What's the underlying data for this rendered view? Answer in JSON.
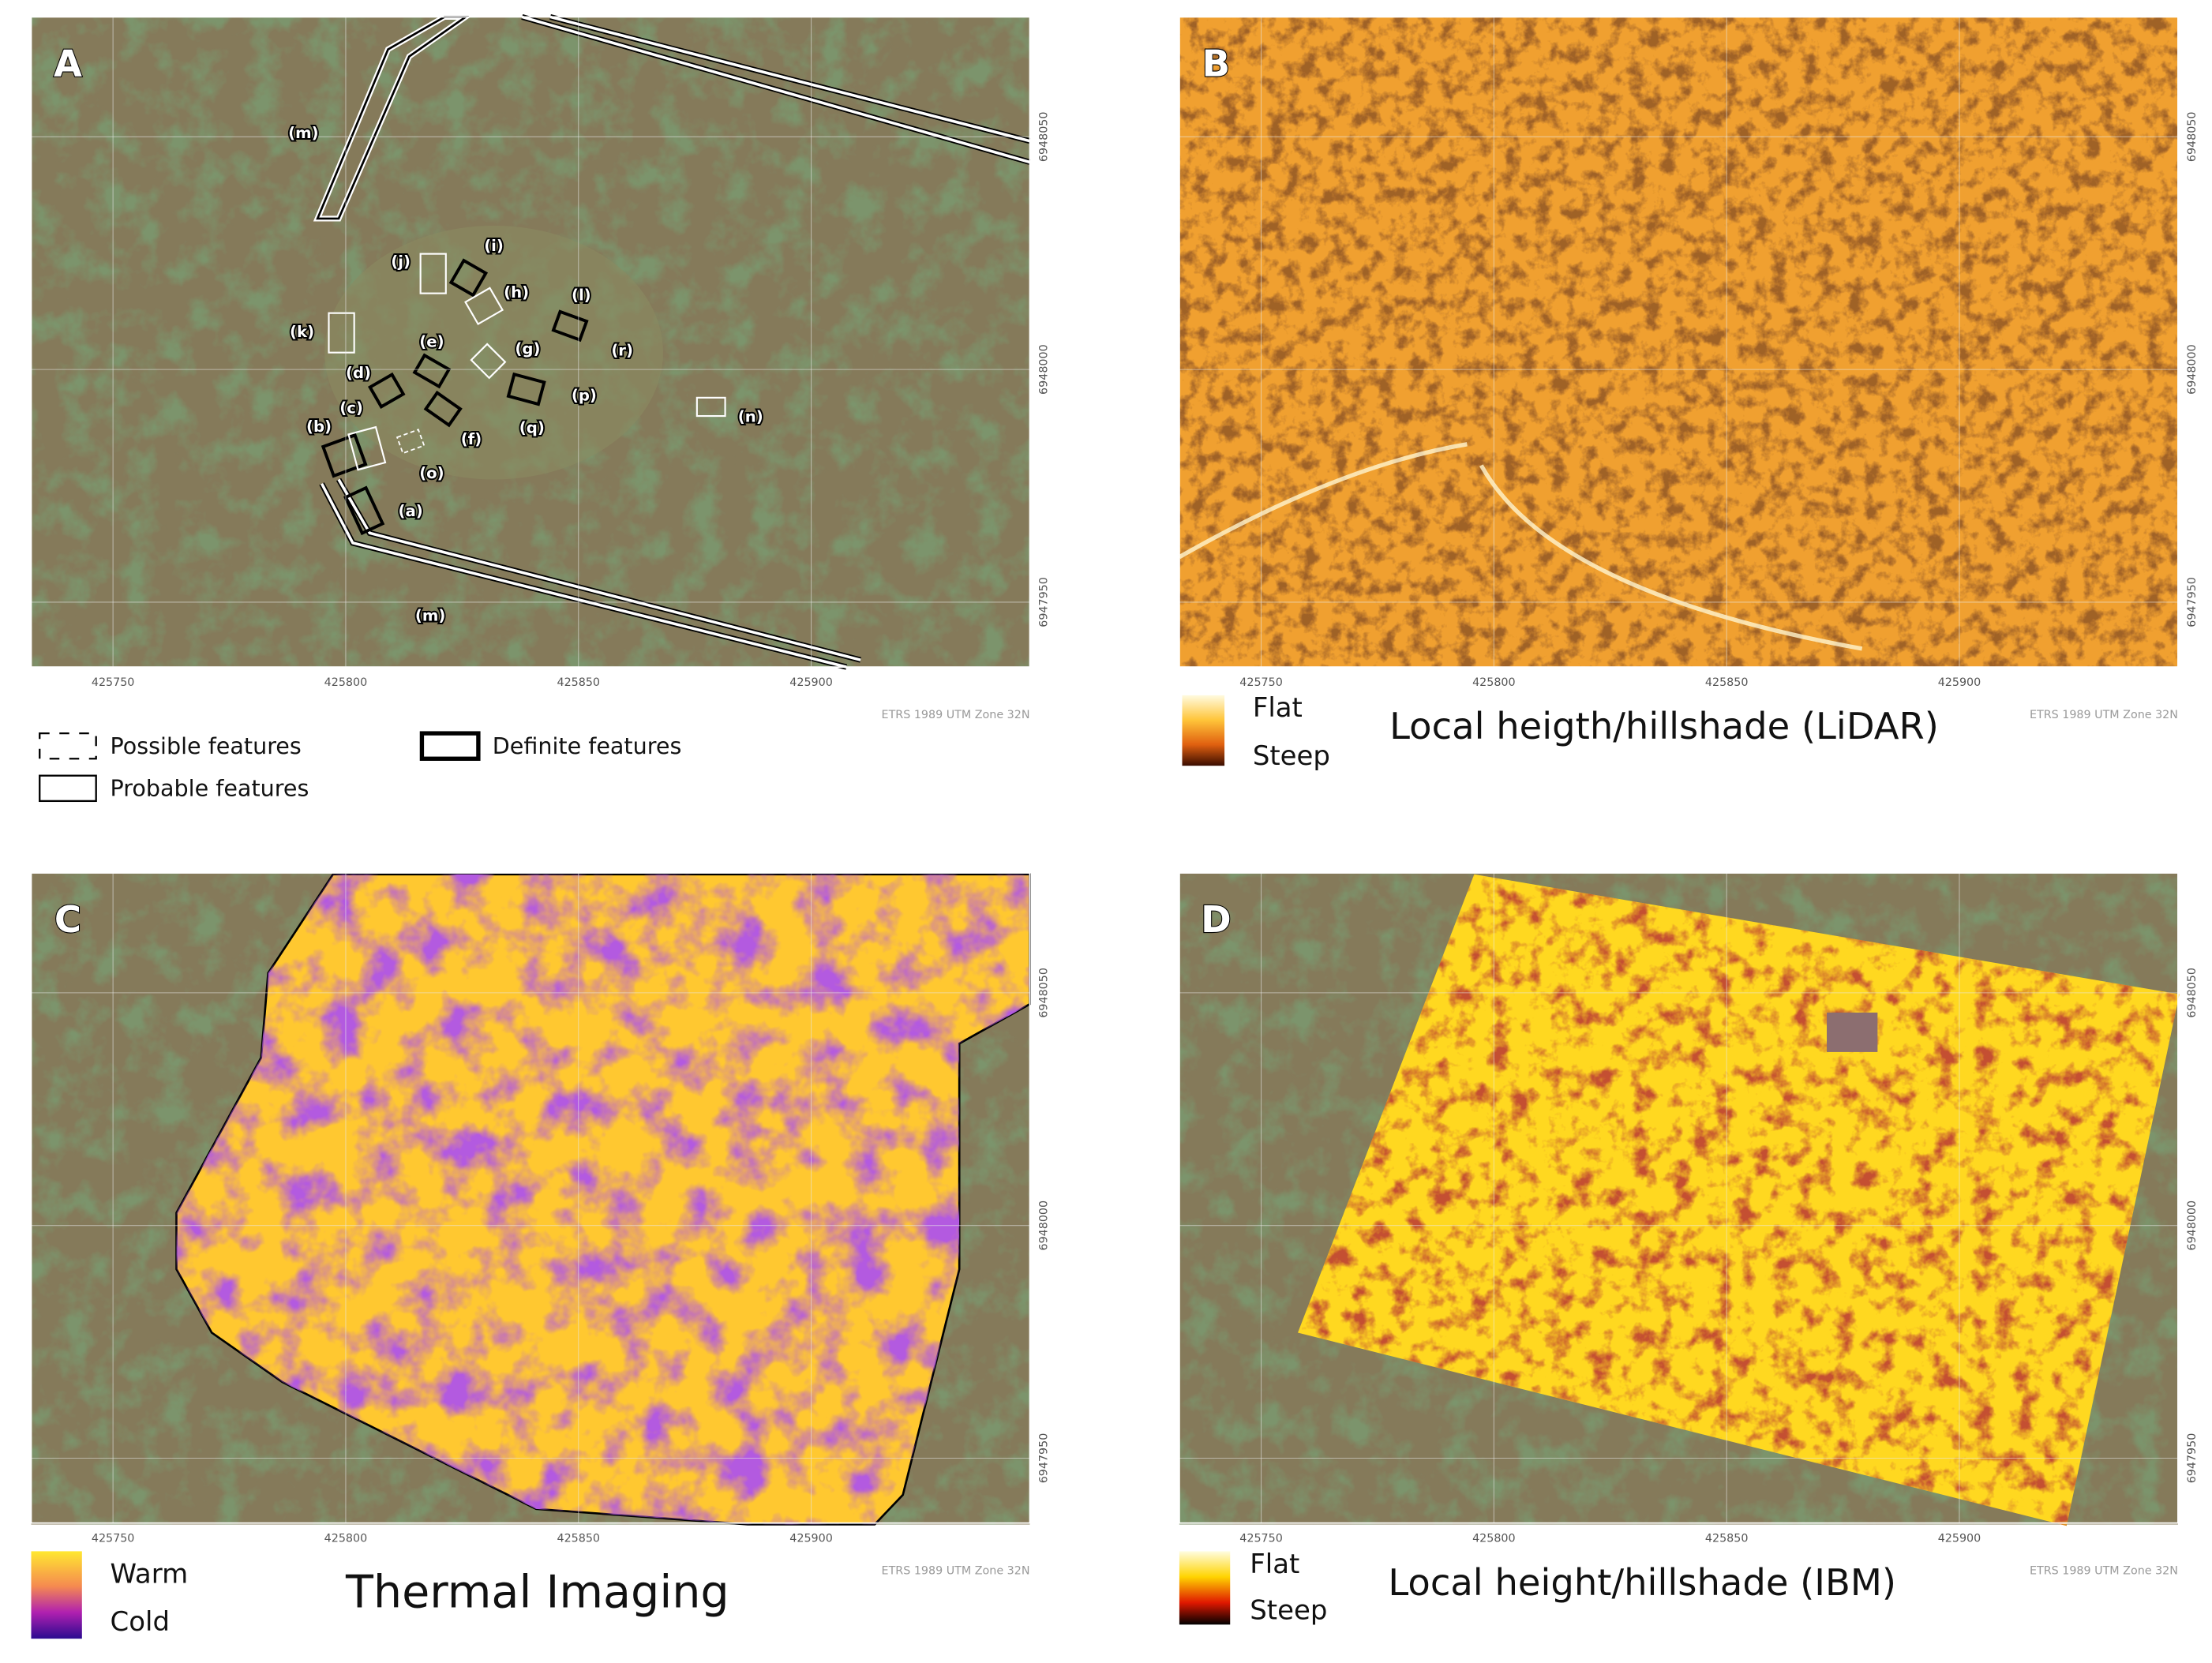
{
  "panels": [
    {
      "letter": "A",
      "x_ticks": [
        "425750",
        "425800",
        "425850",
        "425900"
      ],
      "y_ticks": [
        "6948050",
        "6948000",
        "6947950"
      ],
      "crs": "ETRS 1989 UTM Zone 32N"
    },
    {
      "letter": "B",
      "x_ticks": [
        "425750",
        "425800",
        "425850",
        "425900"
      ],
      "y_ticks": [
        "6948050",
        "6948000",
        "6947950"
      ],
      "crs": "ETRS 1989 UTM Zone 32N"
    },
    {
      "letter": "C",
      "x_ticks": [
        "425750",
        "425800",
        "425850",
        "425900"
      ],
      "y_ticks": [
        "6948050",
        "6948000",
        "6947950"
      ],
      "crs": "ETRS 1989 UTM Zone 32N"
    },
    {
      "letter": "D",
      "x_ticks": [
        "425750",
        "425800",
        "425850",
        "425900"
      ],
      "y_ticks": [
        "6948050",
        "6948000",
        "6947950"
      ],
      "crs": "ETRS 1989 UTM Zone 32N"
    }
  ],
  "panel_a": {
    "feature_labels": [
      "(m)",
      "(m)",
      "(j)",
      "(i)",
      "(h)",
      "(l)",
      "(k)",
      "(e)",
      "(g)",
      "(r)",
      "(d)",
      "(p)",
      "(q)",
      "(n)",
      "(c)",
      "(b)",
      "(f)",
      "(o)",
      "(a)"
    ],
    "legend": {
      "possible": "Possible features",
      "probable": "Probable features",
      "definite": "Definite features"
    }
  },
  "panel_b": {
    "legend": {
      "top": "Flat",
      "bottom": "Steep"
    },
    "title": "Local heigth/hillshade (LiDAR)"
  },
  "panel_c": {
    "legend": {
      "top": "Warm",
      "bottom": "Cold"
    },
    "title": "Thermal Imaging"
  },
  "panel_d": {
    "legend": {
      "top": "Flat",
      "bottom": "Steep"
    },
    "title": "Local height/hillshade (IBM)"
  }
}
